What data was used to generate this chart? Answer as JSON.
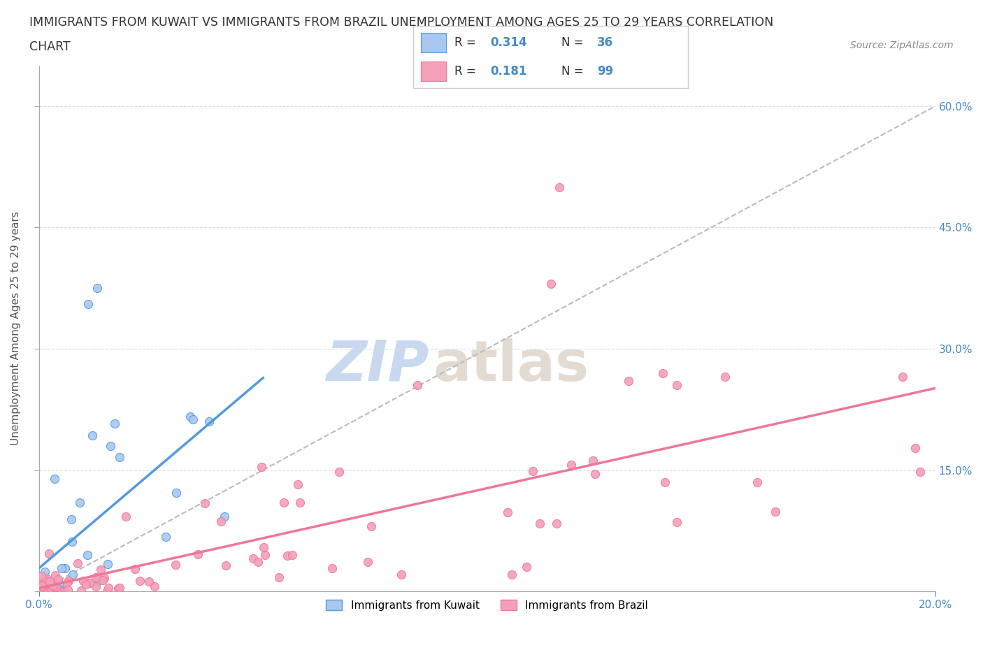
{
  "title_line1": "IMMIGRANTS FROM KUWAIT VS IMMIGRANTS FROM BRAZIL UNEMPLOYMENT AMONG AGES 25 TO 29 YEARS CORRELATION",
  "title_line2": "CHART",
  "source": "Source: ZipAtlas.com",
  "ylabel": "Unemployment Among Ages 25 to 29 years",
  "xmin": 0.0,
  "xmax": 0.2,
  "ymin": 0.0,
  "ymax": 0.65,
  "kuwait_R": 0.314,
  "kuwait_N": 36,
  "brazil_R": 0.181,
  "brazil_N": 99,
  "kuwait_color": "#a8c8f0",
  "brazil_color": "#f4a0b8",
  "kuwait_line_color": "#5599dd",
  "brazil_line_color": "#ee7799",
  "ref_line_color": "#bbbbbb",
  "background_color": "#ffffff",
  "grid_color": "#dddddd",
  "title_color": "#333333",
  "source_color": "#888888",
  "axis_label_color": "#555555",
  "tick_color": "#4488cc",
  "legend_r_color": "#333333",
  "legend_n_color": "#4488cc",
  "watermark_zip_color": "#c8d8ee",
  "watermark_atlas_color": "#d8ccc0"
}
